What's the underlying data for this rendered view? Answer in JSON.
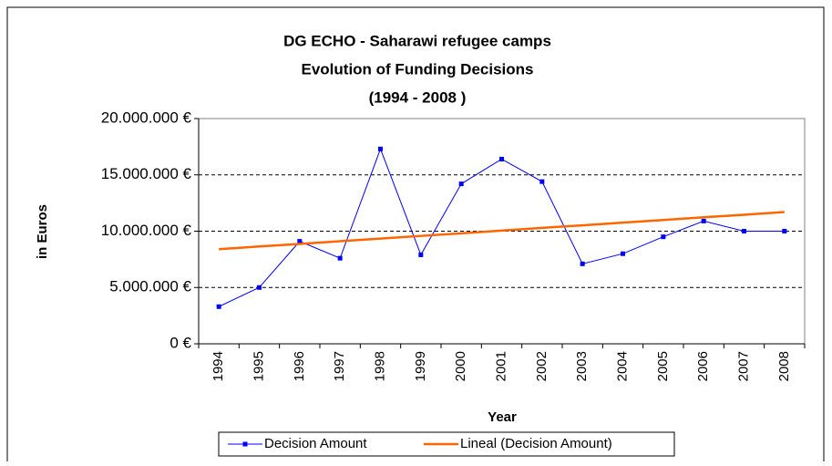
{
  "chart_data": {
    "type": "line",
    "title": [
      "DG ECHO - Saharawi refugee camps",
      "Evolution of Funding Decisions",
      "(1994 - 2008 )"
    ],
    "y_label": "in Euros",
    "x_label": "Year",
    "categories": [
      "1994",
      "1995",
      "1996",
      "1997",
      "1998",
      "1999",
      "2000",
      "2001",
      "2002",
      "2003",
      "2004",
      "2005",
      "2006",
      "2007",
      "2008"
    ],
    "series": [
      {
        "name": "Decision Amount",
        "color": "#0000ff",
        "marker": "square",
        "values": [
          3300000,
          5000000,
          9100000,
          7600000,
          17300000,
          7900000,
          14200000,
          16400000,
          14400000,
          7100000,
          8000000,
          9500000,
          10900000,
          10000000,
          10000000
        ]
      },
      {
        "name": "Lineal (Decision Amount)",
        "color": "#ff6600",
        "marker": "none",
        "values": [
          8400000,
          8640000,
          8870000,
          9110000,
          9340000,
          9580000,
          9810000,
          10050000,
          10290000,
          10520000,
          10760000,
          10990000,
          11230000,
          11460000,
          11700000
        ]
      }
    ],
    "ylim": [
      0,
      20000000
    ],
    "yticks": [
      {
        "value": 0,
        "label": "0 €"
      },
      {
        "value": 5000000,
        "label": "5.000.000 €"
      },
      {
        "value": 10000000,
        "label": "10.000.000 €"
      },
      {
        "value": 15000000,
        "label": "15.000.000 €"
      },
      {
        "value": 20000000,
        "label": "20.000.000 €"
      }
    ],
    "grid": true,
    "legend": "bottom"
  }
}
